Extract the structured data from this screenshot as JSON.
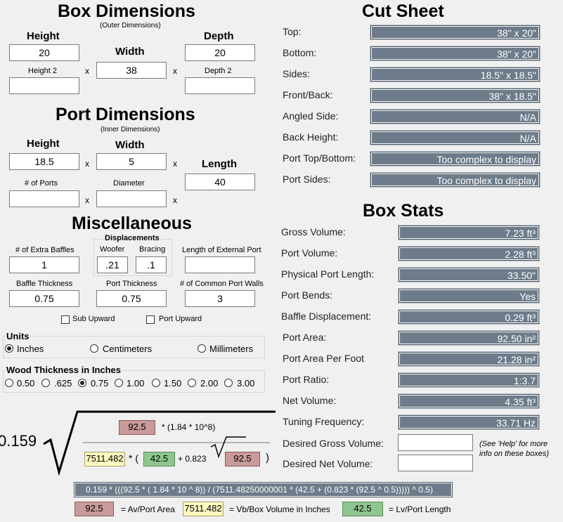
{
  "box_dimensions": {
    "title": "Box Dimensions",
    "subtitle": "(Outer Dimensions)",
    "height_label": "Height",
    "width_label": "Width",
    "depth_label": "Depth",
    "height_value": "20",
    "width_value": "38",
    "depth_value": "20",
    "height2_label": "Height 2",
    "depth2_label": "Depth 2",
    "height2_value": "",
    "depth2_value": ""
  },
  "port_dimensions": {
    "title": "Port Dimensions",
    "subtitle": "(Inner Dimensions)",
    "height_label": "Height",
    "width_label": "Width",
    "length_label": "Length",
    "height_value": "18.5",
    "width_value": "5",
    "length_value": "40",
    "ports_label": "# of Ports",
    "diameter_label": "Diameter",
    "ports_value": "",
    "diameter_value": ""
  },
  "multiply_sign": "x",
  "misc": {
    "title": "Miscellaneous",
    "extra_baffles_label": "# of Extra Baffles",
    "extra_baffles_value": "1",
    "displacements_label": "Displacements",
    "woofer_label": "Woofer",
    "woofer_value": ".21",
    "bracing_label": "Bracing",
    "bracing_value": ".1",
    "external_port_label": "Length of External Port",
    "external_port_value": "",
    "baffle_thickness_label": "Baffle Thickness",
    "baffle_thickness_value": "0.75",
    "port_thickness_label": "Port Thickness",
    "port_thickness_value": "0.75",
    "common_walls_label": "# of Common Port Walls",
    "common_walls_value": "3",
    "sub_upward_label": "Sub Upward",
    "port_upward_label": "Port Upward"
  },
  "units": {
    "title": "Units",
    "options": [
      "Inches",
      "Centimeters",
      "Millimeters"
    ],
    "selected": "Inches"
  },
  "wood": {
    "title": "Wood Thickness in Inches",
    "options": [
      "0.50",
      ".625",
      "0.75",
      "1.00",
      "1.50",
      "2.00",
      "3.00"
    ],
    "selected": "0.75"
  },
  "cut_sheet": {
    "title": "Cut Sheet",
    "rows": [
      {
        "label": "Top:",
        "value": "38\" x 20\""
      },
      {
        "label": "Bottom:",
        "value": "38\" x 20\""
      },
      {
        "label": "Sides:",
        "value": "18.5\" x 18.5\""
      },
      {
        "label": "Front/Back:",
        "value": "38\" x 18.5\""
      },
      {
        "label": "Angled Side:",
        "value": "N/A"
      },
      {
        "label": "Back Height:",
        "value": "N/A"
      },
      {
        "label": "Port Top/Bottom:",
        "value": "Too complex to display"
      },
      {
        "label": "Port Sides:",
        "value": "Too complex to display"
      }
    ]
  },
  "box_stats": {
    "title": "Box Stats",
    "rows": [
      {
        "label": "Gross Volume:",
        "value": "7.23 ft³"
      },
      {
        "label": "Port Volume:",
        "value": "2.28 ft³"
      },
      {
        "label": "Physical Port Length:",
        "value": "33.50\""
      },
      {
        "label": "Port Bends:",
        "value": "Yes"
      },
      {
        "label": "Baffle Displacement:",
        "value": "0.29 ft³"
      },
      {
        "label": "Port Area:",
        "value": "92.50 in²"
      },
      {
        "label": "Port Area Per Foot",
        "value": "21.28 in²"
      },
      {
        "label": "Port Ratio:",
        "value": "1:3.7"
      },
      {
        "label": "Net Volume:",
        "value": "4.35 ft³"
      },
      {
        "label": "Tuning Frequency:",
        "value": "33.71 Hz"
      }
    ],
    "desired_gross_label": "Desired Gross Volume:",
    "desired_gross_value": "",
    "desired_net_label": "Desired Net Volume:",
    "desired_net_value": "",
    "help_note": "(See 'Help' for more info on these boxes)"
  },
  "formula": {
    "coefficient": "0.159",
    "av": "92.5",
    "top_factor": "* (1.84 * 10^8)",
    "vb": "7511.482",
    "times_paren": "* (",
    "lv": "42.5",
    "plus_coef": "+ 0.823",
    "av2": "92.5",
    "close_paren": ")",
    "expression": "0.159 * (((92.5 * ( 1.84 * 10 ^ 8)) / (7511.48250000001 * (42.5 + (0.823 * (92.5 ^ 0.5))))) ^ 0.5)",
    "legend_av": "92.5",
    "legend_av_label": "= Av/Port Area",
    "legend_vb": "7511.482",
    "legend_vb_label": "= Vb/Box Volume in Inches",
    "legend_lv": "42.5",
    "legend_lv_label": "= Lv/Port Length"
  },
  "colors": {
    "output_bg": "#6d7b8a",
    "av_box": "#c99a9a",
    "vb_box": "#fdf7c0",
    "lv_box": "#8fc690"
  }
}
